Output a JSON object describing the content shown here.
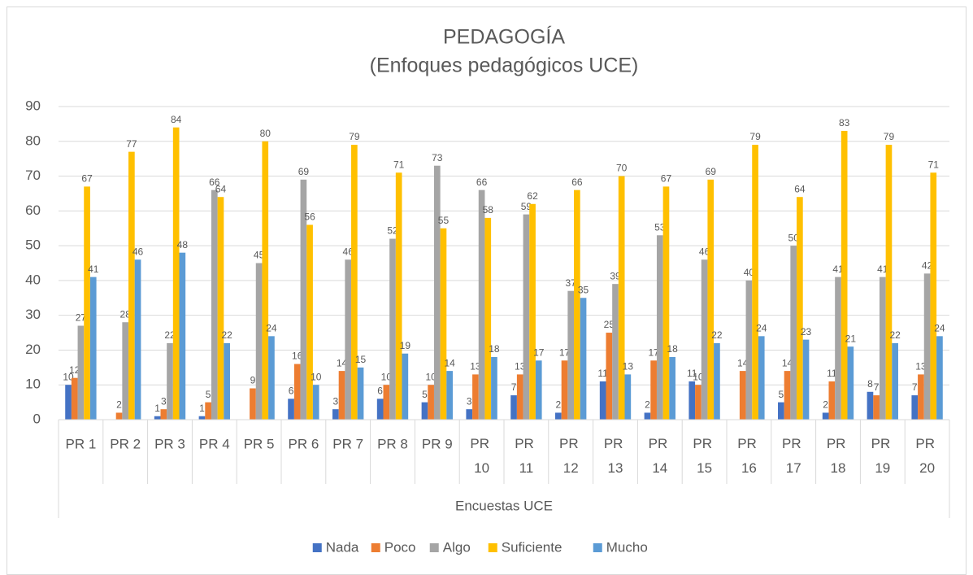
{
  "chart_data": {
    "type": "bar",
    "title": "PEDAGOGÍA",
    "subtitle": "(Enfoques pedagógicos UCE)",
    "x_label": "Encuestas UCE",
    "categories": [
      "PR 1",
      "PR 2",
      "PR 3",
      "PR 4",
      "PR 5",
      "PR 6",
      "PR 7",
      "PR 8",
      "PR 9",
      "PR 10",
      "PR 11",
      "PR 12",
      "PR 13",
      "PR 14",
      "PR 15",
      "PR 16",
      "PR 17",
      "PR 18",
      "PR 19",
      "PR 20"
    ],
    "series": [
      {
        "name": "Nada",
        "color": "#4472c4",
        "values": [
          10,
          null,
          1,
          1,
          null,
          6,
          3,
          6,
          5,
          3,
          7,
          2,
          11,
          2,
          11,
          null,
          5,
          2,
          8,
          7
        ]
      },
      {
        "name": "Poco",
        "color": "#ed7d31",
        "values": [
          12,
          2,
          3,
          5,
          9,
          16,
          14,
          10,
          10,
          13,
          13,
          17,
          25,
          17,
          10,
          14,
          14,
          11,
          7,
          13
        ]
      },
      {
        "name": "Algo",
        "color": "#a5a5a5",
        "values": [
          27,
          28,
          22,
          66,
          45,
          69,
          46,
          52,
          73,
          66,
          59,
          37,
          39,
          53,
          46,
          40,
          50,
          41,
          41,
          42
        ]
      },
      {
        "name": "Suficiente",
        "color": "#ffc000",
        "values": [
          67,
          77,
          84,
          64,
          80,
          56,
          79,
          71,
          55,
          58,
          62,
          66,
          70,
          67,
          69,
          79,
          64,
          83,
          79,
          71
        ]
      },
      {
        "name": "Mucho",
        "color": "#5b9bd5",
        "values": [
          41,
          46,
          48,
          22,
          24,
          10,
          15,
          19,
          14,
          18,
          17,
          35,
          13,
          18,
          22,
          24,
          23,
          21,
          22,
          24
        ]
      }
    ],
    "ylim": [
      0,
      90
    ],
    "yticks": [
      0,
      10,
      20,
      30,
      40,
      50,
      60,
      70,
      80,
      90
    ],
    "grid": true,
    "legend": "bottom"
  }
}
